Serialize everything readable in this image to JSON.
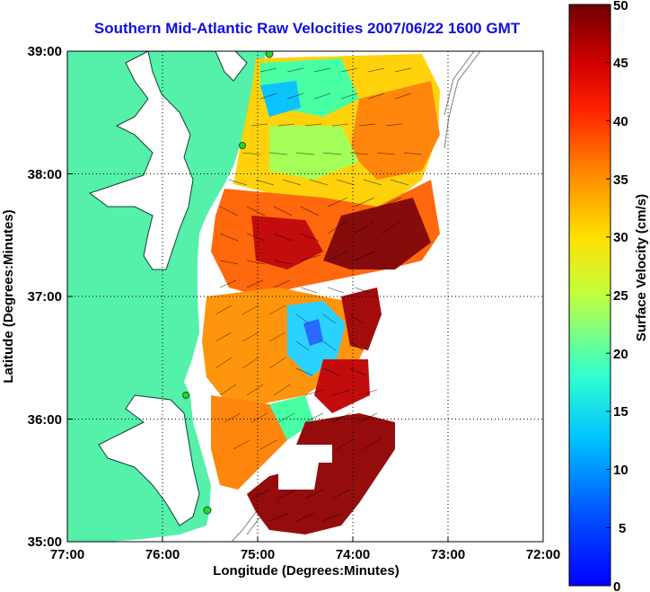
{
  "title": "Southern Mid-Atlantic Raw Velocities 2007/06/22 1600 GMT",
  "map": {
    "xlabel": "Longitude (Degrees:Minutes)",
    "ylabel": "Latitude (Degrees:Minutes)",
    "lon_ticks": [
      "77:00",
      "76:00",
      "75:00",
      "74:00",
      "73:00",
      "72:00"
    ],
    "lat_ticks": [
      "39:00",
      "38:00",
      "37:00",
      "36:00",
      "35:00"
    ],
    "lon_range": [
      -77,
      -72
    ],
    "lat_range": [
      35,
      39
    ]
  },
  "colorbar": {
    "label": "Surface Velocity (cm/s)",
    "ticks": [
      "50",
      "45",
      "40",
      "35",
      "30",
      "25",
      "20",
      "15",
      "10",
      "5",
      "0"
    ],
    "min": 0,
    "max": 50
  },
  "colors": {
    "land": "#55f0aa",
    "title": "#1010e0",
    "grid": "#000000"
  }
}
